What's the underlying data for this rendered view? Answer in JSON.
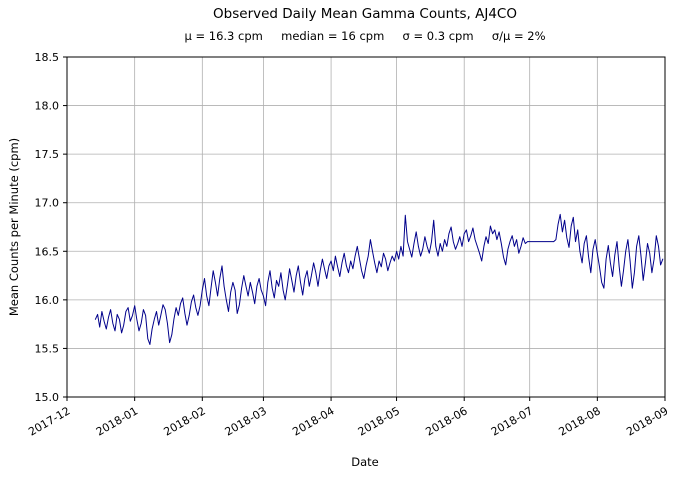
{
  "chart_data": {
    "type": "line",
    "title": "Observed Daily Mean Gamma Counts, AJ4CO",
    "subtitle": "μ = 16.3 cpm     median = 16 cpm     σ = 0.3 cpm     σ/μ = 2%",
    "stats": {
      "mu": "16.3 cpm",
      "median": "16 cpm",
      "sigma": "0.3 cpm",
      "sigma_over_mu": "2%"
    },
    "xlabel": "Date",
    "ylabel": "Mean Counts per Minute (cpm)",
    "ylim": [
      15.0,
      18.5
    ],
    "yticks": [
      15.0,
      15.5,
      16.0,
      16.5,
      17.0,
      17.5,
      18.0,
      18.5
    ],
    "y_tick_labels": [
      "15.0",
      "15.5",
      "16.0",
      "16.5",
      "17.0",
      "17.5",
      "18.0",
      "18.5"
    ],
    "x_tick_labels": [
      "2017-12",
      "2018-01",
      "2018-02",
      "2018-03",
      "2018-04",
      "2018-05",
      "2018-06",
      "2018-07",
      "2018-08",
      "2018-09"
    ],
    "x_tick_days": [
      0,
      31,
      62,
      90,
      121,
      151,
      182,
      212,
      243,
      274
    ],
    "x_range_days": [
      0,
      274
    ],
    "grid": true,
    "grid_color": "#b0b0b0",
    "line_color": "#00008b",
    "series": [
      {
        "name": "daily-mean-gamma-counts",
        "start_date": "2017-12-14",
        "start_day": 13,
        "values": [
          15.8,
          15.85,
          15.72,
          15.88,
          15.78,
          15.7,
          15.82,
          15.9,
          15.76,
          15.68,
          15.85,
          15.8,
          15.66,
          15.74,
          15.88,
          15.92,
          15.78,
          15.84,
          15.94,
          15.8,
          15.68,
          15.76,
          15.9,
          15.84,
          15.6,
          15.54,
          15.7,
          15.8,
          15.88,
          15.74,
          15.84,
          15.95,
          15.9,
          15.76,
          15.56,
          15.64,
          15.8,
          15.92,
          15.84,
          15.96,
          16.02,
          15.86,
          15.74,
          15.84,
          15.98,
          16.05,
          15.92,
          15.84,
          15.94,
          16.1,
          16.22,
          16.04,
          15.94,
          16.12,
          16.3,
          16.18,
          16.04,
          16.22,
          16.35,
          16.14,
          16.0,
          15.88,
          16.08,
          16.18,
          16.1,
          15.86,
          15.95,
          16.12,
          16.25,
          16.14,
          16.04,
          16.18,
          16.08,
          15.96,
          16.14,
          16.22,
          16.1,
          16.04,
          15.94,
          16.18,
          16.3,
          16.12,
          16.02,
          16.2,
          16.14,
          16.28,
          16.1,
          16.0,
          16.15,
          16.32,
          16.2,
          16.08,
          16.25,
          16.35,
          16.18,
          16.05,
          16.22,
          16.3,
          16.14,
          16.25,
          16.38,
          16.28,
          16.14,
          16.3,
          16.42,
          16.32,
          16.22,
          16.35,
          16.4,
          16.3,
          16.45,
          16.34,
          16.24,
          16.38,
          16.48,
          16.35,
          16.28,
          16.4,
          16.32,
          16.45,
          16.55,
          16.42,
          16.3,
          16.22,
          16.35,
          16.45,
          16.62,
          16.5,
          16.38,
          16.28,
          16.4,
          16.34,
          16.48,
          16.42,
          16.3,
          16.38,
          16.45,
          16.4,
          16.5,
          16.42,
          16.55,
          16.45,
          16.87,
          16.6,
          16.52,
          16.44,
          16.58,
          16.7,
          16.55,
          16.45,
          16.52,
          16.65,
          16.55,
          16.48,
          16.6,
          16.82,
          16.55,
          16.45,
          16.58,
          16.5,
          16.62,
          16.55,
          16.68,
          16.75,
          16.6,
          16.52,
          16.58,
          16.65,
          16.55,
          16.68,
          16.72,
          16.6,
          16.66,
          16.74,
          16.62,
          16.55,
          16.48,
          16.4,
          16.55,
          16.65,
          16.58,
          16.76,
          16.68,
          16.72,
          16.62,
          16.7,
          16.58,
          16.44,
          16.36,
          16.52,
          16.6,
          16.66,
          16.55,
          16.62,
          16.48,
          16.55,
          16.64,
          16.58,
          16.6,
          16.6,
          16.6,
          16.6,
          16.6,
          16.6,
          16.6,
          16.6,
          16.6,
          16.6,
          16.6,
          16.6,
          16.6,
          16.62,
          16.78,
          16.88,
          16.7,
          16.82,
          16.64,
          16.54,
          16.76,
          16.85,
          16.6,
          16.72,
          16.5,
          16.38,
          16.58,
          16.66,
          16.44,
          16.28,
          16.52,
          16.62,
          16.48,
          16.34,
          16.18,
          16.12,
          16.42,
          16.56,
          16.38,
          16.24,
          16.46,
          16.6,
          16.34,
          16.14,
          16.3,
          16.5,
          16.62,
          16.4,
          16.12,
          16.28,
          16.55,
          16.66,
          16.45,
          16.2,
          16.38,
          16.58,
          16.48,
          16.28,
          16.42,
          16.66,
          16.55,
          16.36,
          16.42
        ]
      }
    ]
  }
}
